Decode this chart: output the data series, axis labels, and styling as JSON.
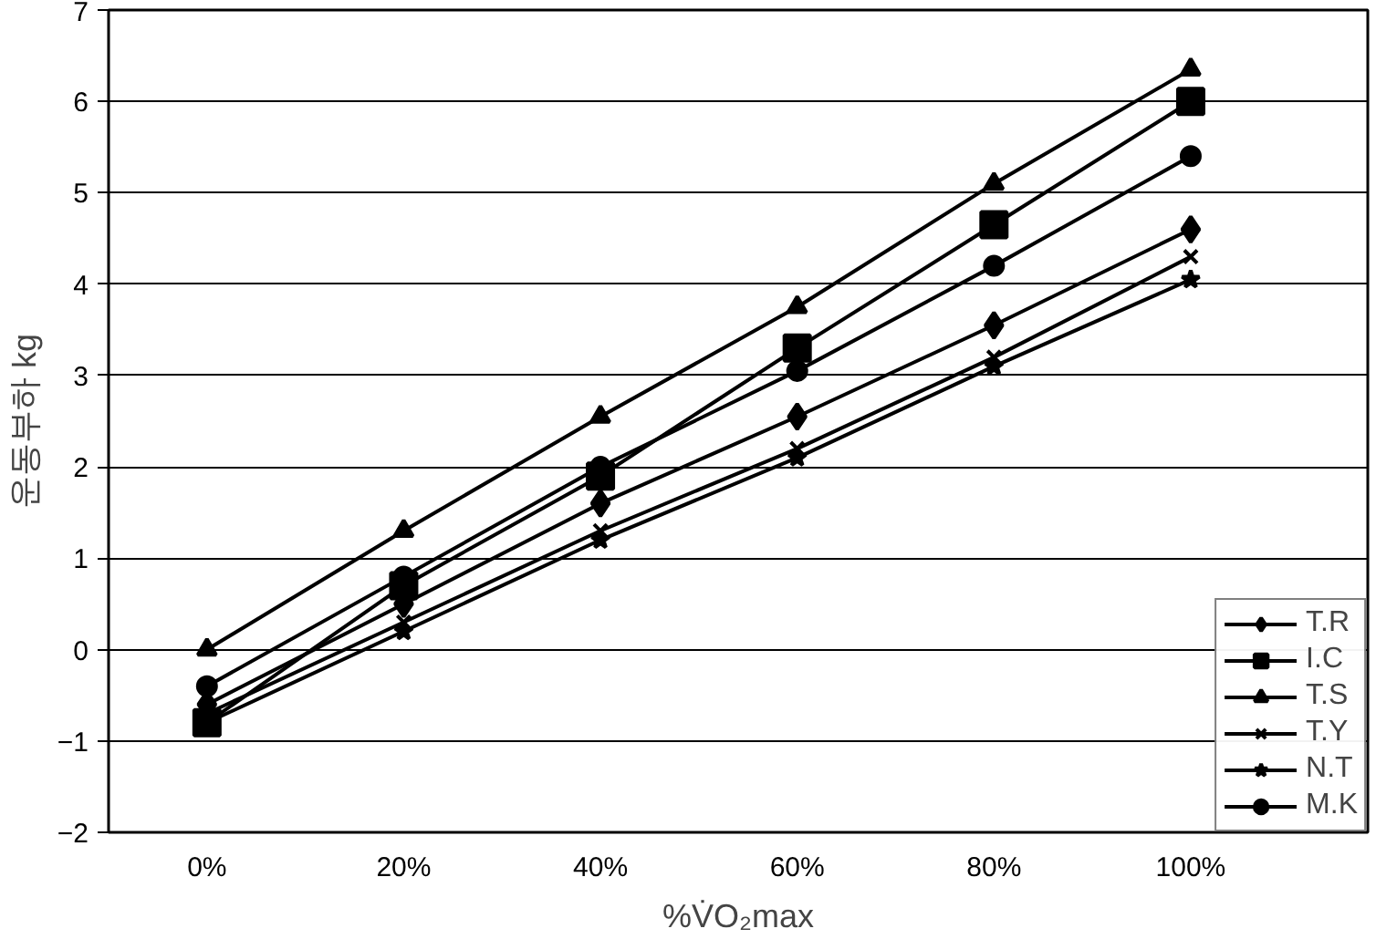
{
  "chart_data": {
    "type": "line",
    "xlabel": "%V̇O₂max",
    "ylabel": "운동부하 kg",
    "categories": [
      "0%",
      "20%",
      "40%",
      "60%",
      "80%",
      "100%"
    ],
    "ylim": [
      -2,
      7
    ],
    "yticks": [
      -2,
      -1,
      0,
      1,
      2,
      3,
      4,
      5,
      6,
      7
    ],
    "grid": "y",
    "legend": "bottom right",
    "line_style": "solid",
    "series": [
      {
        "name": "T.R",
        "color": "#000000",
        "marker": "diamond",
        "values": [
          -0.6,
          0.5,
          1.6,
          2.55,
          3.55,
          4.6
        ]
      },
      {
        "name": "I.C",
        "color": "#000000",
        "marker": "square",
        "values": [
          -0.8,
          0.7,
          1.9,
          3.3,
          4.65,
          6.0
        ]
      },
      {
        "name": "T.S",
        "color": "#000000",
        "marker": "triangle",
        "values": [
          0.0,
          1.3,
          2.55,
          3.75,
          5.1,
          6.35
        ]
      },
      {
        "name": "T.Y",
        "color": "#000000",
        "marker": "cross",
        "values": [
          -0.7,
          0.3,
          1.3,
          2.2,
          3.2,
          4.3
        ]
      },
      {
        "name": "N.T",
        "color": "#000000",
        "marker": "star",
        "values": [
          -0.8,
          0.2,
          1.2,
          2.1,
          3.1,
          4.05
        ]
      },
      {
        "name": "M.K",
        "color": "#000000",
        "marker": "circle",
        "values": [
          -0.4,
          0.8,
          2.0,
          3.05,
          4.2,
          5.4
        ]
      }
    ]
  }
}
